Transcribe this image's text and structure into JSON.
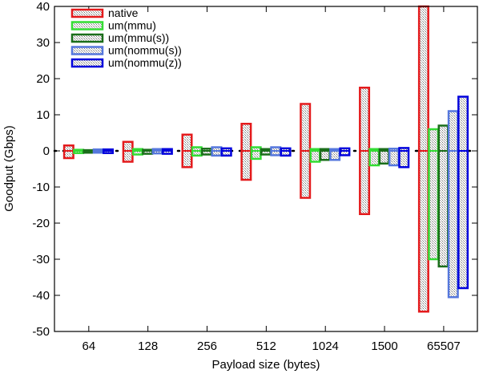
{
  "chart_data": {
    "type": "bar",
    "xlabel": "Payload size (bytes)",
    "ylabel": "Goodput (Gbps)",
    "ylim": [
      -50,
      40
    ],
    "yticks": [
      -50,
      -40,
      -30,
      -20,
      -10,
      0,
      10,
      20,
      30,
      40
    ],
    "categories": [
      "64",
      "128",
      "256",
      "512",
      "1024",
      "1500",
      "65507"
    ],
    "legend_position": "top-left",
    "series": [
      {
        "name": "native",
        "color": "#e41a1c",
        "low": [
          -2,
          -3,
          -4.5,
          -8,
          -13,
          -17.5,
          -44.5
        ],
        "high": [
          1.5,
          2.5,
          4.5,
          7.5,
          13,
          17.5,
          40
        ]
      },
      {
        "name": "um(mmu)",
        "color": "#33dd33",
        "low": [
          -0.6,
          -1,
          -1.3,
          -2.2,
          -3,
          -4,
          -30
        ],
        "high": [
          0.3,
          0.5,
          1,
          1,
          0.5,
          0.5,
          6
        ]
      },
      {
        "name": "um(mmu(s))",
        "color": "#1a6e1a",
        "low": [
          -0.5,
          -0.8,
          -1,
          -1,
          -2.5,
          -3.5,
          -32
        ],
        "high": [
          0.2,
          0.3,
          0.6,
          0.5,
          0.5,
          0.5,
          7
        ]
      },
      {
        "name": "um(nommu(s))",
        "color": "#5577dd",
        "low": [
          -0.5,
          -0.7,
          -1.3,
          -1.2,
          -2.5,
          -4,
          -40.5
        ],
        "high": [
          0.4,
          0.5,
          1,
          1,
          0.5,
          0.6,
          11
        ]
      },
      {
        "name": "um(nommu(z))",
        "color": "#0000dd",
        "low": [
          -0.6,
          -0.8,
          -1.3,
          -1.3,
          -1.2,
          -4.5,
          -38
        ],
        "high": [
          0.4,
          0.5,
          0.7,
          0.7,
          0.7,
          0.8,
          15
        ]
      }
    ]
  }
}
